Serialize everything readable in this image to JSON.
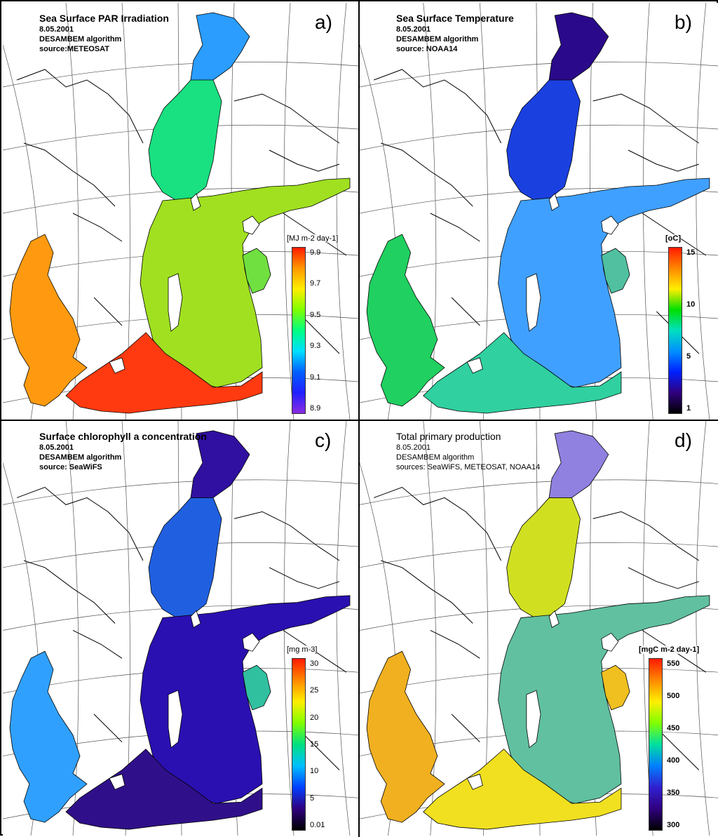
{
  "colors": {
    "outline": "#000000",
    "graticule": "#555555",
    "land": "#ffffff"
  },
  "panels": [
    {
      "id": "a",
      "letter": "a)",
      "title": "Sea Surface PAR Irradiation",
      "date": "8.05.2001",
      "algorithm": "DESAMBEM algorithm",
      "source": "source:METEOSAT",
      "unit": "[MJ m-2 day-1]",
      "ticks": [
        "9.9",
        "9.7",
        "9.5",
        "9.3",
        "9.1",
        "8.9"
      ],
      "colorbar": [
        "#ff1a00",
        "#ff9900",
        "#ffee00",
        "#80ff00",
        "#00ff80",
        "#00e0ff",
        "#0060ff",
        "#2020ff",
        "#8a2be2"
      ],
      "fills": {
        "north": "#2a9dff",
        "bothnia": "#19e080",
        "central": "#a0e020",
        "south": "#ff3a10",
        "west": "#ff9a10",
        "east": "#70e040"
      }
    },
    {
      "id": "b",
      "letter": "b)",
      "title": "Sea Surface Temperature",
      "date": "8.05.2001",
      "algorithm": "DESAMBEM algorithm",
      "source": "source: NOAA14",
      "unit": "[oC]",
      "ticks": [
        "15",
        "10",
        "5",
        "1"
      ],
      "colorbar": [
        "#ff1a00",
        "#ff8800",
        "#ffee00",
        "#00e000",
        "#00e0c0",
        "#0090ff",
        "#0020ff",
        "#300080",
        "#000000"
      ],
      "fills": {
        "north": "#2a0a8a",
        "bothnia": "#1a40e0",
        "central": "#40a0ff",
        "south": "#30d0a0",
        "west": "#20d060",
        "east": "#50c0a0"
      }
    },
    {
      "id": "c",
      "letter": "c)",
      "title": "Surface chlorophyll a concentration",
      "date": "8.05.2001",
      "algorithm": "DESAMBEM algorithm",
      "source": "source: SeaWiFS",
      "unit": "[mg m-3]",
      "ticks": [
        "30",
        "25",
        "20",
        "15",
        "10",
        "5",
        "0.01"
      ],
      "colorbar": [
        "#ff1a00",
        "#ff8800",
        "#ffee00",
        "#80ff00",
        "#00e080",
        "#00c0ff",
        "#0040ff",
        "#300080",
        "#000000"
      ],
      "fills": {
        "north": "#3010a0",
        "bothnia": "#2060e0",
        "central": "#2a10b0",
        "south": "#30108a",
        "west": "#30a0ff",
        "east": "#30c0a0"
      }
    },
    {
      "id": "d",
      "letter": "d)",
      "title": "Total primary production",
      "date": "8.05.2001",
      "algorithm": "DESAMBEM algorithm",
      "source": "sources: SeaWiFS, METEOSAT, NOAA14",
      "unit": "[mgC m-2 day-1]",
      "ticks": [
        "550",
        "500",
        "450",
        "400",
        "350",
        "300"
      ],
      "colorbar": [
        "#ff1a00",
        "#ff8800",
        "#ffee00",
        "#80ff00",
        "#00e0a0",
        "#0080ff",
        "#3020d0",
        "#300080",
        "#000000"
      ],
      "fills": {
        "north": "#9080e0",
        "bothnia": "#d0e020",
        "central": "#60c0a0",
        "south": "#f0e020",
        "west": "#f0b020",
        "east": "#f0c020"
      }
    }
  ]
}
